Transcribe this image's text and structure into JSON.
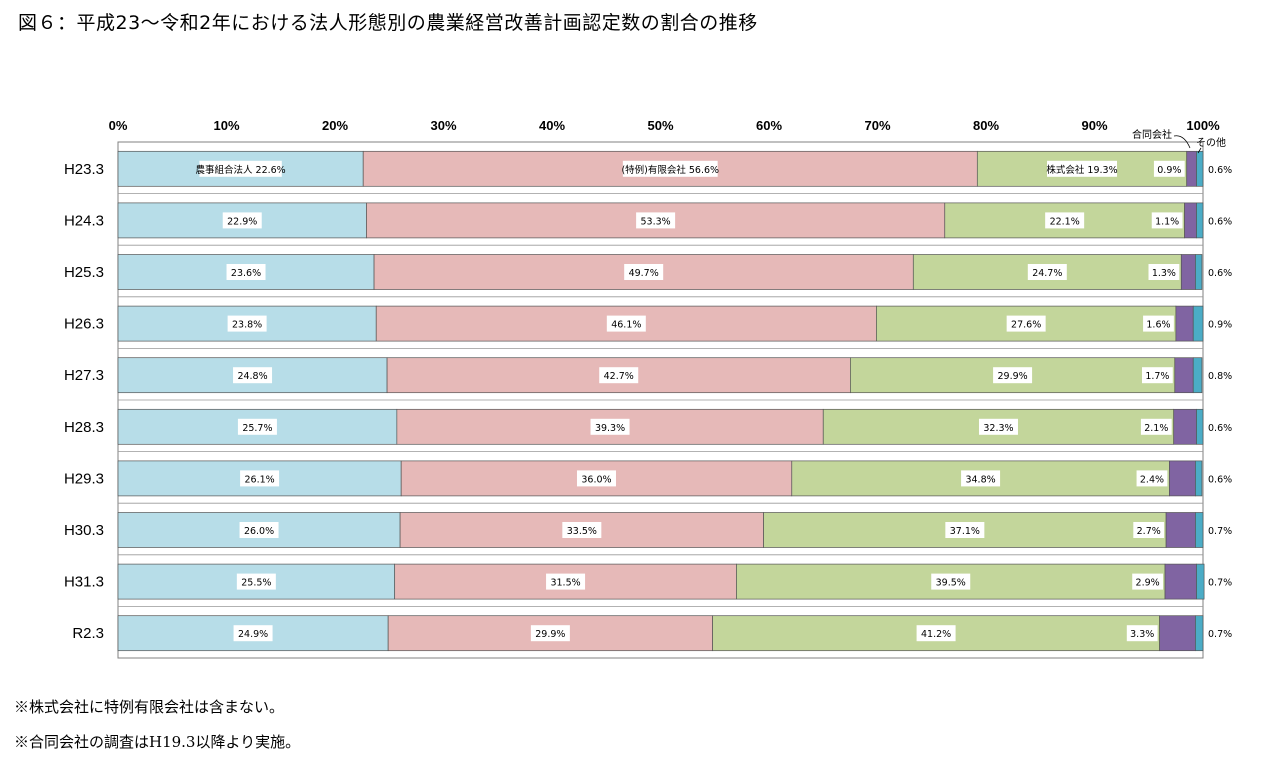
{
  "title": "図６：平成23～令和2年における法人形態別の農業経営改善計画認定数の割合の推移",
  "notes": [
    "※株式会社に特例有限会社は含まない。",
    "※合同会社の調査はH19.3以降より実施。"
  ],
  "chart_data": {
    "type": "bar",
    "orientation": "horizontal",
    "stacked": true,
    "percent": true,
    "title": "図６：平成23～令和2年における法人形態別の農業経営改善計画認定数の割合の推移",
    "xlim": [
      0,
      100
    ],
    "x_ticks": [
      "0%",
      "10%",
      "20%",
      "30%",
      "40%",
      "50%",
      "60%",
      "70%",
      "80%",
      "90%",
      "100%"
    ],
    "categories": [
      "H23.3",
      "H24.3",
      "H25.3",
      "H26.3",
      "H27.3",
      "H28.3",
      "H29.3",
      "H30.3",
      "H31.3",
      "R2.3"
    ],
    "series": [
      {
        "name": "農事組合法人",
        "color": "#b7dde8",
        "values": [
          22.6,
          22.9,
          23.6,
          23.8,
          24.8,
          25.7,
          26.1,
          26.0,
          25.5,
          24.9
        ],
        "labels": [
          "農事組合法人 22.6%",
          "22.9%",
          "23.6%",
          "23.8%",
          "24.8%",
          "25.7%",
          "26.1%",
          "26.0%",
          "25.5%",
          "24.9%"
        ]
      },
      {
        "name": "(特例)有限会社",
        "color": "#e6b9b8",
        "values": [
          56.6,
          53.3,
          49.7,
          46.1,
          42.7,
          39.3,
          36.0,
          33.5,
          31.5,
          29.9
        ],
        "labels": [
          "(特例)有限会社 56.6%",
          "53.3%",
          "49.7%",
          "46.1%",
          "42.7%",
          "39.3%",
          "36.0%",
          "33.5%",
          "31.5%",
          "29.9%"
        ]
      },
      {
        "name": "株式会社",
        "color": "#c3d69b",
        "values": [
          19.3,
          22.1,
          24.7,
          27.6,
          29.9,
          32.3,
          34.8,
          37.1,
          39.5,
          41.2
        ],
        "labels": [
          "株式会社 19.3%",
          "22.1%",
          "24.7%",
          "27.6%",
          "29.9%",
          "32.3%",
          "34.8%",
          "37.1%",
          "39.5%",
          "41.2%"
        ]
      },
      {
        "name": "合同会社",
        "color": "#8064a2",
        "values": [
          0.9,
          1.1,
          1.3,
          1.6,
          1.7,
          2.1,
          2.4,
          2.7,
          2.9,
          3.3
        ],
        "labels": [
          "0.9%",
          "1.1%",
          "1.3%",
          "1.6%",
          "1.7%",
          "2.1%",
          "2.4%",
          "2.7%",
          "2.9%",
          "3.3%"
        ]
      },
      {
        "name": "その他",
        "color": "#4bacc6",
        "values": [
          0.6,
          0.6,
          0.6,
          0.9,
          0.8,
          0.6,
          0.6,
          0.7,
          0.7,
          0.7
        ],
        "labels": [
          "0.6%",
          "0.6%",
          "0.6%",
          "0.9%",
          "0.8%",
          "0.6%",
          "0.6%",
          "0.7%",
          "0.7%",
          "0.7%"
        ]
      }
    ],
    "callouts": [
      "合同会社",
      "その他"
    ],
    "legend": "none"
  }
}
